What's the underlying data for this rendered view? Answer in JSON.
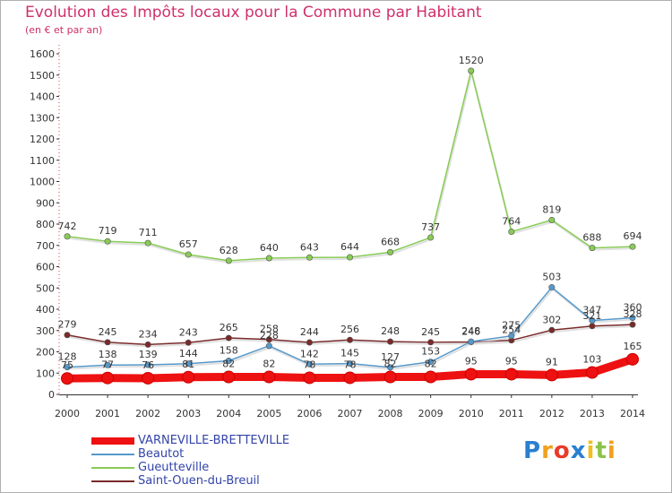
{
  "title": "Evolution des Impôts locaux pour la Commune par Habitant",
  "subtitle": "(en € et par an)",
  "logo_letters": [
    "P",
    "r",
    "o",
    "x",
    "i",
    "t",
    "i"
  ],
  "logo_colors": [
    "#2a7fd0",
    "#f0a020",
    "#e83a2a",
    "#2a7fd0",
    "#f0c020",
    "#8bc34a",
    "#f0a020"
  ],
  "chart_data": {
    "type": "line",
    "x": [
      2000,
      2001,
      2002,
      2003,
      2004,
      2005,
      2006,
      2007,
      2008,
      2009,
      2010,
      2011,
      2012,
      2013,
      2014
    ],
    "ylim": [
      0,
      1600
    ],
    "yticks": [
      0,
      100,
      200,
      300,
      400,
      500,
      600,
      700,
      800,
      900,
      1000,
      1100,
      1200,
      1300,
      1400,
      1500,
      1600
    ],
    "grid": false,
    "legend_position": "bottom-left",
    "series": [
      {
        "name": "Gueutteville",
        "color": "#88cc55",
        "values": [
          742,
          719,
          711,
          657,
          628,
          640,
          643,
          644,
          668,
          737,
          1520,
          764,
          819,
          688,
          694
        ],
        "labels": [
          "742",
          "719",
          "711",
          "657",
          "628",
          "640",
          "643",
          "644",
          "668",
          "737",
          "1520",
          "764",
          "819",
          "688",
          "694"
        ]
      },
      {
        "name": "Saint-Ouen-du-Breuil",
        "color": "#7a2a2a",
        "values": [
          279,
          245,
          234,
          243,
          265,
          258,
          244,
          256,
          248,
          245,
          246,
          254,
          302,
          321,
          328
        ],
        "labels": [
          "279",
          "245",
          "234",
          "243",
          "265",
          "258",
          "244",
          "256",
          "248",
          "245",
          "246",
          "254",
          "302",
          "321",
          "328"
        ]
      },
      {
        "name": "Beautot",
        "color": "#5599cc",
        "values": [
          128,
          138,
          139,
          144,
          158,
          228,
          142,
          145,
          127,
          153,
          248,
          275,
          503,
          347,
          360
        ],
        "labels": [
          "128",
          "138",
          "139",
          "144",
          "158",
          "228",
          "142",
          "145",
          "127",
          "153",
          "248",
          "275",
          "503",
          "347",
          "360"
        ]
      },
      {
        "name": "VARNEVILLE-BRETTEVILLE",
        "color": "#ee1111",
        "values": [
          75,
          77,
          76,
          81,
          82,
          82,
          78,
          78,
          82,
          82,
          95,
          95,
          91,
          103,
          165
        ],
        "labels": [
          "75",
          "77",
          "76",
          "81",
          "82",
          "82",
          "78",
          "78",
          "82",
          "82",
          "95",
          "95",
          "91",
          "103",
          "165"
        ]
      }
    ]
  },
  "legend": [
    {
      "label": "VARNEVILLE-BRETTEVILLE",
      "color": "#ee1111",
      "thick": true
    },
    {
      "label": "Beautot",
      "color": "#5599cc",
      "thick": false
    },
    {
      "label": "Gueutteville",
      "color": "#88cc55",
      "thick": false
    },
    {
      "label": "Saint-Ouen-du-Breuil",
      "color": "#7a2a2a",
      "thick": false
    }
  ]
}
